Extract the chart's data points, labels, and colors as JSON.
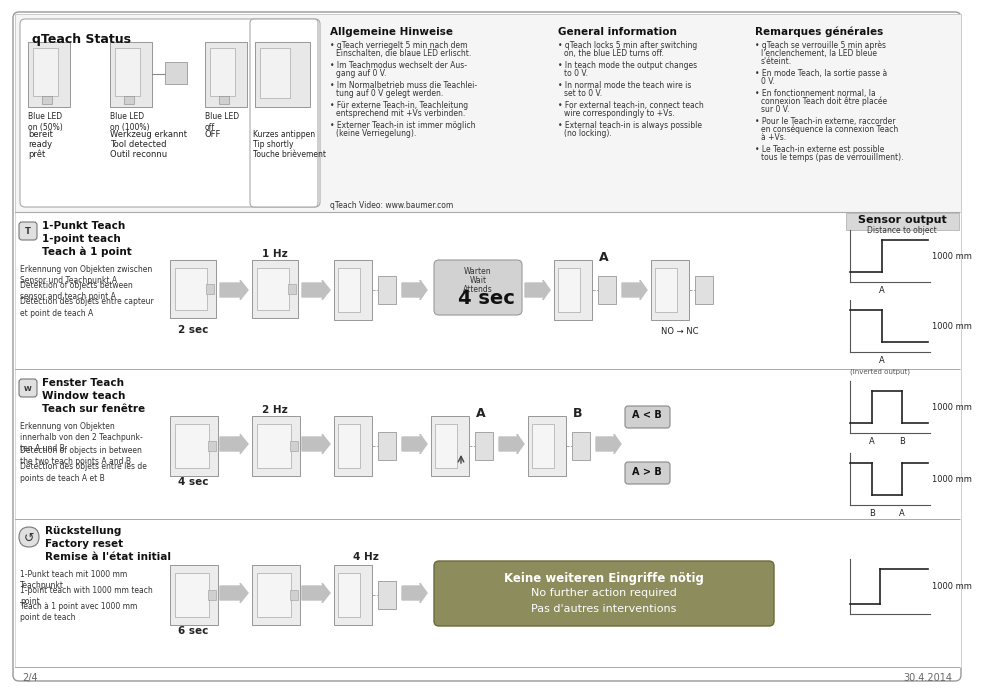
{
  "top_section": {
    "qteach_status_title": "qTeach Status",
    "led_labels": [
      "Blue LED\non (50%)",
      "Blue LED\non (100%)",
      "Blue LED\noff"
    ],
    "status_row1": [
      "bereit",
      "Werkzeug erkannt",
      "OFF"
    ],
    "status_row2": [
      "ready",
      "Tool detected",
      ""
    ],
    "status_row3": [
      "prêt",
      "Outil reconnu",
      ""
    ],
    "teach_labels": [
      "Kurzes antippen",
      "Tip shortly",
      "Touche brièvement"
    ]
  },
  "allgemeine_hinweise": {
    "title": "Allgemeine Hinweise",
    "items": [
      "qTeach verriegelt 5 min nach dem\nEinschalten, die blaue LED erlischt.",
      "Im Teachmodus wechselt der Aus-\ngang auf 0 V.",
      "Im Normalbetrieb muss die Teachlei-\ntung auf 0 V gelegt werden.",
      "Für externe Teach-in, Teachleitung\nentsprechend mit +Vs verbinden.",
      "Externer Teach-in ist immer möglich\n(keine Verriegelung)."
    ],
    "footer": "qTeach Video: www.baumer.com"
  },
  "general_information": {
    "title": "General information",
    "items": [
      "qTeach locks 5 min after switching\non, the blue LED turns off.",
      "In teach mode the output changes\nto 0 V.",
      "In normal mode the teach wire is\nset to 0 V.",
      "For external teach-in, connect teach\nwire correspondingly to +Vs.",
      "External teach-in is always possible\n(no locking)."
    ]
  },
  "remarques_generales": {
    "title": "Remarques générales",
    "items": [
      "qTeach se verrouille 5 min après\nl'enclenchement, la LED bleue\ns'éteint.",
      "En mode Teach, la sortie passe à\n0 V.",
      "En fonctionnement normal, la\nconnexion Teach doit être placée\nsur 0 V.",
      "Pour le Teach-in externe, raccorder\nen conséquence la connexion Teach\nà +Vs.",
      "Le Teach-in externe est possible\ntous le temps (pas de verrouillment)."
    ]
  },
  "sensor_output_title": "Sensor output",
  "sensor_output_subtitle": "Distance to object",
  "row1": {
    "title_de": "1-Punkt Teach",
    "title_en": "1-point teach",
    "title_fr": "Teach à 1 point",
    "desc_de": "Erkennung von Objekten zwischen\nSensor und Teachpunkt A",
    "desc_en": "Detektion of objects between\nsensor and teach point A",
    "desc_fr": "Détection des objets entre capteur\net point de teach A",
    "time1": "2 sec",
    "time2": "1 Hz",
    "wait_label_de": "Warten",
    "wait_label_en": "Wait",
    "wait_label_fr": "Attends",
    "wait_time": "4 sec",
    "no_nc": "NO → NC",
    "inverted": "(inverted output)",
    "dist_label": "A",
    "dist_value": "1000 mm"
  },
  "row2": {
    "title_de": "Fenster Teach",
    "title_en": "Window teach",
    "title_fr": "Teach sur fenêtre",
    "desc_de": "Erkennung von Objekten\ninnerhalb von den 2 Teachpunk-\nten A und B",
    "desc_en": "Detection of objects in between\nthe two teach points A and B",
    "desc_fr": "Détection des objets entre les de\npoints de teach A et B",
    "time1": "4 sec",
    "time2": "2 Hz",
    "ab_label1": "A < B",
    "ab_label2": "A > B",
    "dist_value": "1000 mm"
  },
  "row3": {
    "title_de": "Rückstellung",
    "title_en": "Factory reset",
    "title_fr": "Remise à l'état initial",
    "desc_de": "1-Punkt teach mit 1000 mm\nTeachpunkt",
    "desc_en": "1-point teach with 1000 mm teach\npoint",
    "desc_fr": "Teach à 1 point avec 1000 mm\npoint de teach",
    "time1": "6 sec",
    "time2": "4 Hz",
    "banner_de": "Keine weiteren Eingriffe nötig",
    "banner_en": "No further action required",
    "banner_fr": "Pas d'autres interventions",
    "dist_value": "1000 mm"
  },
  "footer_left": "2/4",
  "footer_right": "30.4.2014"
}
